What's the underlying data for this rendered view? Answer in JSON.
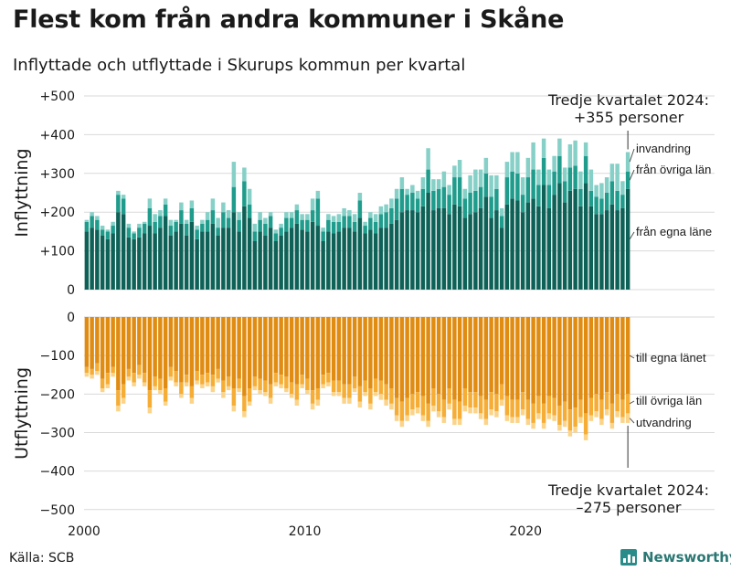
{
  "title": "Flest kom från andra kommuner i Skåne",
  "subtitle": "Inflyttade och utflyttade i Skurups kommun per kvartal",
  "source": "Källa: SCB",
  "brand": "Newsworthy",
  "chart_data": {
    "type": "bar",
    "stacked": true,
    "x_range": [
      2000,
      2024.75
    ],
    "x_ticks": [
      "2000",
      "2010",
      "2020"
    ],
    "y_ticks_top": [
      "+500",
      "+400",
      "+300",
      "+200",
      "+100",
      "0"
    ],
    "y_ticks_bottom": [
      "0",
      "−100",
      "−200",
      "−300",
      "−400",
      "−500"
    ],
    "ylim_top": [
      0,
      500
    ],
    "ylim_bottom": [
      -500,
      0
    ],
    "ylabel_top": "Inflyttning",
    "ylabel_bottom": "Utflyttning",
    "grid": true,
    "colors": {
      "in_own": "#0e6157",
      "in_other": "#1f9c8c",
      "in_intl": "#86d0c8",
      "out_own": "#e08c12",
      "out_other": "#f5ad35",
      "out_intl": "#fbd489"
    },
    "inflyttning_series": [
      {
        "name": "från egna läne",
        "values": [
          150,
          160,
          155,
          140,
          130,
          145,
          200,
          195,
          135,
          130,
          135,
          145,
          165,
          145,
          160,
          190,
          140,
          150,
          170,
          140,
          175,
          130,
          150,
          150,
          170,
          140,
          160,
          160,
          200,
          150,
          215,
          185,
          125,
          150,
          140,
          160,
          125,
          140,
          150,
          160,
          170,
          155,
          150,
          175,
          165,
          125,
          150,
          145,
          150,
          160,
          160,
          150,
          185,
          145,
          155,
          145,
          160,
          160,
          170,
          180,
          200,
          205,
          205,
          200,
          215,
          250,
          205,
          210,
          210,
          195,
          220,
          215,
          185,
          195,
          200,
          210,
          240,
          185,
          205,
          160,
          220,
          235,
          230,
          200,
          225,
          235,
          215,
          270,
          210,
          245,
          275,
          225,
          255,
          260,
          215,
          275,
          215,
          195,
          195,
          205,
          220,
          205,
          210,
          260
        ]
      },
      {
        "name": "från övriga län",
        "values": [
          25,
          30,
          25,
          15,
          20,
          20,
          45,
          40,
          25,
          15,
          25,
          25,
          45,
          30,
          30,
          30,
          25,
          25,
          35,
          30,
          35,
          25,
          20,
          30,
          35,
          20,
          40,
          25,
          65,
          30,
          65,
          35,
          25,
          30,
          30,
          30,
          20,
          20,
          35,
          25,
          35,
          25,
          30,
          30,
          70,
          25,
          30,
          30,
          25,
          30,
          30,
          25,
          45,
          20,
          30,
          30,
          35,
          40,
          40,
          55,
          60,
          40,
          45,
          35,
          45,
          60,
          50,
          50,
          55,
          50,
          70,
          75,
          50,
          55,
          55,
          55,
          60,
          55,
          55,
          30,
          70,
          70,
          70,
          45,
          65,
          75,
          55,
          70,
          60,
          60,
          70,
          55,
          60,
          60,
          45,
          70,
          40,
          45,
          40,
          45,
          60,
          50,
          35,
          45
        ]
      },
      {
        "name": "invandring",
        "values": [
          5,
          10,
          10,
          10,
          5,
          10,
          10,
          10,
          10,
          5,
          10,
          5,
          25,
          20,
          15,
          15,
          15,
          5,
          20,
          10,
          20,
          10,
          10,
          20,
          30,
          25,
          25,
          20,
          65,
          20,
          35,
          40,
          20,
          20,
          15,
          10,
          10,
          10,
          15,
          15,
          15,
          15,
          15,
          30,
          20,
          10,
          15,
          15,
          20,
          20,
          15,
          20,
          20,
          10,
          15,
          20,
          20,
          20,
          25,
          25,
          30,
          15,
          20,
          20,
          30,
          55,
          30,
          25,
          40,
          25,
          30,
          45,
          25,
          45,
          55,
          45,
          40,
          55,
          35,
          20,
          40,
          50,
          55,
          45,
          50,
          70,
          40,
          50,
          40,
          40,
          45,
          35,
          60,
          65,
          45,
          35,
          55,
          30,
          40,
          40,
          45,
          70,
          35,
          50
        ]
      }
    ],
    "utflyttning_series": [
      {
        "name": "till egna länet",
        "values": [
          130,
          135,
          120,
          160,
          145,
          130,
          190,
          175,
          135,
          145,
          125,
          145,
          190,
          155,
          160,
          185,
          130,
          140,
          170,
          150,
          180,
          140,
          150,
          145,
          150,
          135,
          165,
          155,
          185,
          160,
          205,
          185,
          155,
          160,
          165,
          175,
          145,
          150,
          155,
          170,
          175,
          150,
          160,
          190,
          185,
          150,
          145,
          165,
          165,
          175,
          175,
          155,
          180,
          165,
          185,
          160,
          165,
          175,
          185,
          210,
          220,
          210,
          200,
          195,
          205,
          225,
          185,
          200,
          215,
          185,
          215,
          220,
          185,
          195,
          195,
          205,
          215,
          195,
          200,
          175,
          205,
          215,
          215,
          195,
          215,
          225,
          205,
          225,
          205,
          210,
          230,
          220,
          240,
          235,
          215,
          250,
          210,
          200,
          215,
          195,
          225,
          200,
          215,
          200
        ]
      },
      {
        "name": "till övriga län",
        "values": [
          15,
          15,
          20,
          25,
          30,
          15,
          40,
          35,
          20,
          25,
          25,
          25,
          45,
          25,
          30,
          35,
          25,
          30,
          30,
          20,
          30,
          25,
          25,
          25,
          30,
          25,
          30,
          25,
          45,
          25,
          40,
          35,
          25,
          30,
          30,
          35,
          25,
          25,
          30,
          30,
          40,
          25,
          30,
          35,
          30,
          25,
          25,
          30,
          30,
          35,
          35,
          30,
          40,
          30,
          40,
          35,
          35,
          40,
          40,
          45,
          50,
          45,
          40,
          40,
          50,
          45,
          45,
          45,
          45,
          40,
          50,
          45,
          45,
          40,
          40,
          45,
          50,
          45,
          45,
          40,
          50,
          45,
          45,
          45,
          50,
          50,
          45,
          50,
          45,
          45,
          50,
          50,
          55,
          50,
          45,
          55,
          45,
          45,
          50,
          45,
          50,
          45,
          45,
          50
        ]
      },
      {
        "name": "utvandring",
        "values": [
          10,
          10,
          10,
          10,
          10,
          10,
          15,
          15,
          10,
          10,
          10,
          10,
          15,
          10,
          10,
          10,
          10,
          10,
          10,
          10,
          15,
          10,
          10,
          10,
          15,
          10,
          15,
          10,
          15,
          10,
          15,
          10,
          10,
          10,
          10,
          15,
          10,
          10,
          10,
          10,
          15,
          10,
          10,
          15,
          15,
          10,
          10,
          10,
          10,
          15,
          15,
          10,
          15,
          10,
          15,
          10,
          15,
          15,
          15,
          15,
          15,
          15,
          15,
          15,
          15,
          15,
          15,
          15,
          15,
          15,
          15,
          15,
          15,
          15,
          15,
          15,
          15,
          15,
          15,
          15,
          15,
          15,
          15,
          15,
          15,
          15,
          15,
          15,
          15,
          15,
          15,
          15,
          15,
          15,
          15,
          15,
          15,
          15,
          15,
          15,
          15,
          15,
          15,
          25
        ]
      }
    ],
    "annotation_top": [
      "Tredje kvartalet 2024:",
      "+355 personer"
    ],
    "annotation_bottom": [
      "Tredje kvartalet 2024:",
      "–275 personer"
    ]
  }
}
